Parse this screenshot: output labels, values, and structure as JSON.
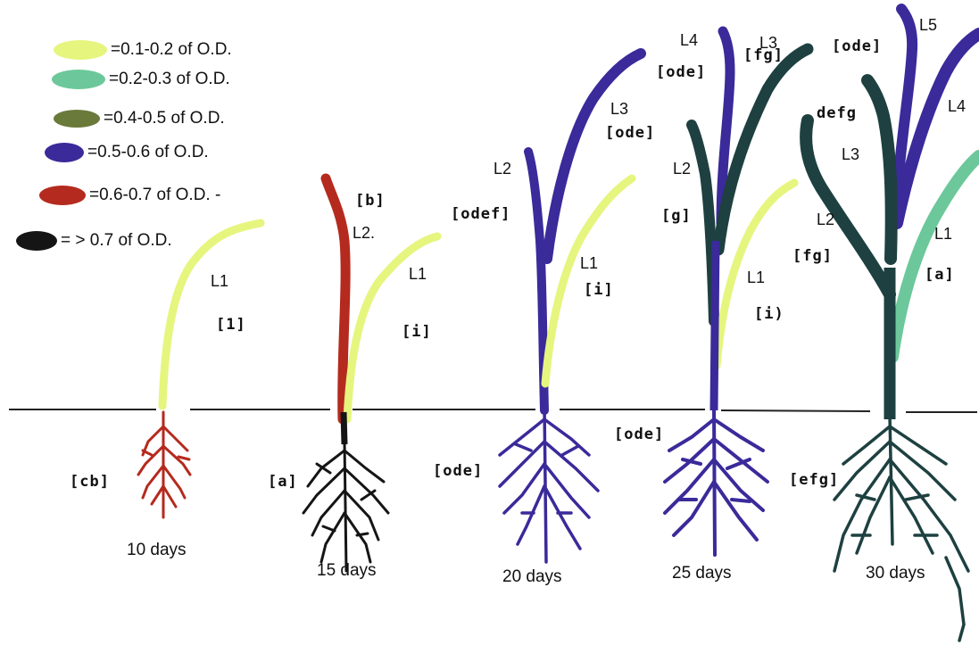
{
  "colors": {
    "c1": "#e6f57e",
    "c2": "#6cc89a",
    "c3": "#6a7a3a",
    "c4": "#3a2a9a",
    "c5": "#b52a1e",
    "c6": "#151515",
    "c_dark": "#1e4040"
  },
  "legend": [
    {
      "label": "=0.1-0.2 of O.D.",
      "color_key": "c1"
    },
    {
      "label": "=0.2-0.3 of O.D.",
      "color_key": "c2"
    },
    {
      "label": "=0.4-0.5 of O.D.",
      "color_key": "c3"
    },
    {
      "label": "=0.5-0.6 of O.D.",
      "color_key": "c4"
    },
    {
      "label": "=0.6-0.7 of O.D. -",
      "color_key": "c5"
    },
    {
      "label": "= > 0.7 of O.D.",
      "color_key": "c6"
    }
  ],
  "plants": [
    {
      "day_label": "10 days",
      "labels": {
        "l1": "L1"
      },
      "codes": {
        "l1": "[1]",
        "root": "[cb]"
      }
    },
    {
      "day_label": "15 days",
      "labels": {
        "l2": "L2.",
        "l1": "L1"
      },
      "codes": {
        "l2": "[b]",
        "l1": "[i]",
        "root": "[a]"
      }
    },
    {
      "day_label": "20 days",
      "labels": {
        "l2": "L2",
        "l3": "L3",
        "l1": "L1"
      },
      "codes": {
        "l3": "[ode]",
        "l2": "[odef]",
        "l1": "[i]",
        "root": "[ode]"
      }
    },
    {
      "day_label": "25 days",
      "labels": {
        "l4": "L4",
        "l3": "L3",
        "l2": "L2",
        "l1": "L1"
      },
      "codes": {
        "l4": "[ode]",
        "l3": "[fg]",
        "l2": "[g]",
        "l1": "[i)",
        "root": "[ode]"
      }
    },
    {
      "day_label": "30 days",
      "labels": {
        "l5": "L5",
        "l4": "L4",
        "l3": "L3",
        "l2": "L2",
        "l1": "L1"
      },
      "codes": {
        "l5": "[ode]",
        "l3": "defg",
        "l2": "[fg]",
        "l1": "[a]",
        "root": "[efg]"
      }
    }
  ]
}
